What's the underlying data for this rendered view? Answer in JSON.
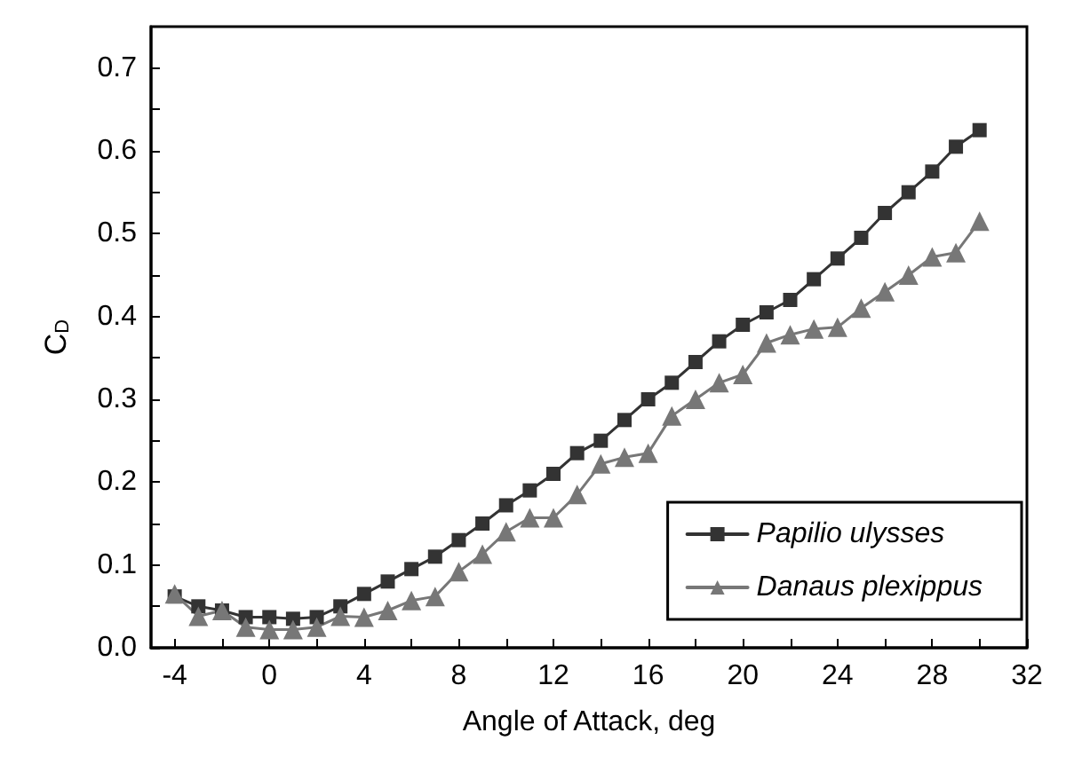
{
  "chart_data": {
    "type": "line",
    "xlabel": "Angle of Attack, deg",
    "ylabel": "C$_{D}$",
    "x": [
      -4,
      -3,
      -2,
      -1,
      0,
      1,
      2,
      3,
      4,
      5,
      6,
      7,
      8,
      9,
      10,
      11,
      12,
      13,
      14,
      15,
      16,
      17,
      18,
      19,
      20,
      21,
      22,
      23,
      24,
      25,
      26,
      27,
      28,
      29,
      30
    ],
    "series": [
      {
        "name": "Papilio ulysses",
        "color": "#333333",
        "marker": "square",
        "values": [
          0.062,
          0.05,
          0.045,
          0.037,
          0.037,
          0.035,
          0.037,
          0.05,
          0.065,
          0.08,
          0.095,
          0.11,
          0.13,
          0.15,
          0.172,
          0.19,
          0.21,
          0.235,
          0.25,
          0.275,
          0.3,
          0.32,
          0.345,
          0.37,
          0.39,
          0.405,
          0.42,
          0.445,
          0.47,
          0.495,
          0.525,
          0.55,
          0.575,
          0.605,
          0.625
        ]
      },
      {
        "name": "Danaus plexippus",
        "color": "#777777",
        "marker": "triangle",
        "values": [
          0.065,
          0.038,
          0.045,
          0.025,
          0.022,
          0.022,
          0.025,
          0.038,
          0.037,
          0.045,
          0.057,
          0.062,
          0.092,
          0.113,
          0.14,
          0.157,
          0.157,
          0.185,
          0.222,
          0.23,
          0.235,
          0.28,
          0.3,
          0.32,
          0.33,
          0.368,
          0.378,
          0.385,
          0.387,
          0.41,
          0.43,
          0.45,
          0.472,
          0.477,
          0.515
        ]
      }
    ],
    "xlim": [
      -5,
      32
    ],
    "xticks": [
      -4,
      {
        "value": -2,
        "label": null
      },
      0,
      {
        "value": 2,
        "label": null
      },
      4,
      {
        "value": 6,
        "label": null
      },
      8,
      {
        "value": 10,
        "label": null
      },
      12,
      {
        "value": 14,
        "label": null
      },
      16,
      {
        "value": 18,
        "label": null
      },
      20,
      {
        "value": 22,
        "label": null
      },
      24,
      {
        "value": 26,
        "label": null
      },
      28,
      {
        "value": 30,
        "label": null
      },
      32
    ],
    "ylim": [
      0,
      0.75
    ],
    "yticks": [
      {
        "value": 0,
        "label": "0.0"
      },
      {
        "value": 0.05,
        "label": null
      },
      0.1,
      {
        "value": 0.15,
        "label": null
      },
      0.2,
      {
        "value": 0.25,
        "label": null
      },
      0.3,
      {
        "value": 0.35,
        "label": null
      },
      0.4,
      {
        "value": 0.45,
        "label": null
      },
      0.5,
      {
        "value": 0.55,
        "label": null
      },
      0.6,
      {
        "value": 0.65,
        "label": null
      },
      0.7
    ],
    "grid": false,
    "legend": "bottom right",
    "line_style": "solid"
  }
}
